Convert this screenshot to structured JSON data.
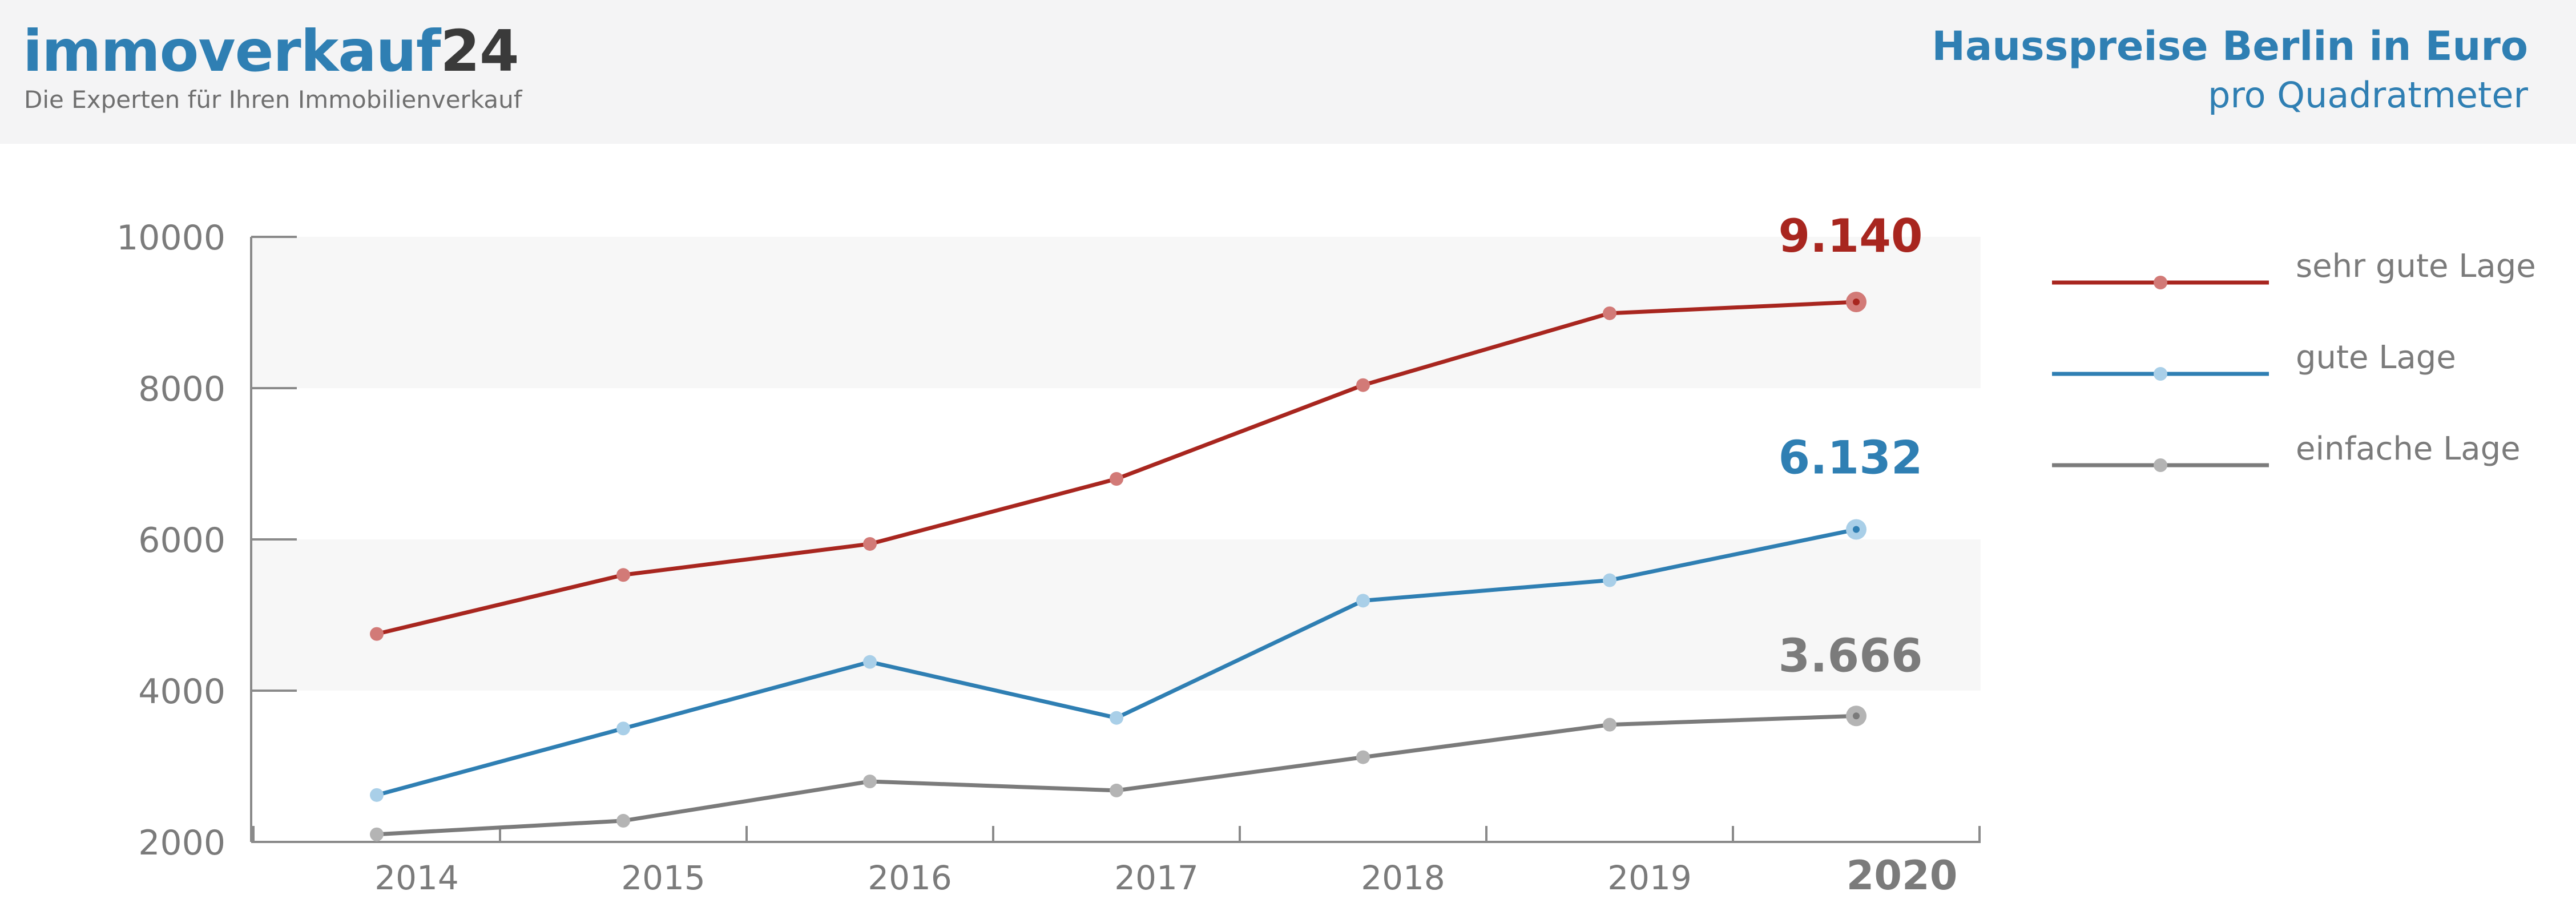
{
  "header": {
    "logo_main": "immoverkauf",
    "logo_num": "24",
    "tagline": "Die Experten für Ihren Immobilienverkauf"
  },
  "chart_data": {
    "type": "line",
    "title": "Hausspreise Berlin in Euro",
    "subtitle": "pro Quadratmeter",
    "xlabel": "",
    "ylabel": "",
    "categories": [
      "2014",
      "2015",
      "2016",
      "2017",
      "2018",
      "2019",
      "2020"
    ],
    "ylim": [
      2000,
      10000
    ],
    "yticks": [
      2000,
      4000,
      6000,
      8000,
      10000
    ],
    "grid": false,
    "alternating_bands": true,
    "legend_position": "right",
    "series": [
      {
        "name": "sehr gute Lage",
        "color": "#a8261f",
        "marker_color": "#d27a77",
        "values": [
          4750,
          5530,
          5940,
          6800,
          8040,
          8990,
          9140
        ],
        "end_label": "9.140"
      },
      {
        "name": "gute Lage",
        "color": "#2f7fb3",
        "marker_color": "#a9cfe8",
        "values": [
          2620,
          3500,
          4380,
          3640,
          5190,
          5460,
          6132
        ],
        "end_label": "6.132"
      },
      {
        "name": "einfache Lage",
        "color": "#7b7b7b",
        "marker_color": "#b4b4b4",
        "values": [
          2100,
          2280,
          2800,
          2680,
          3120,
          3550,
          3666
        ],
        "end_label": "3.666"
      }
    ]
  }
}
